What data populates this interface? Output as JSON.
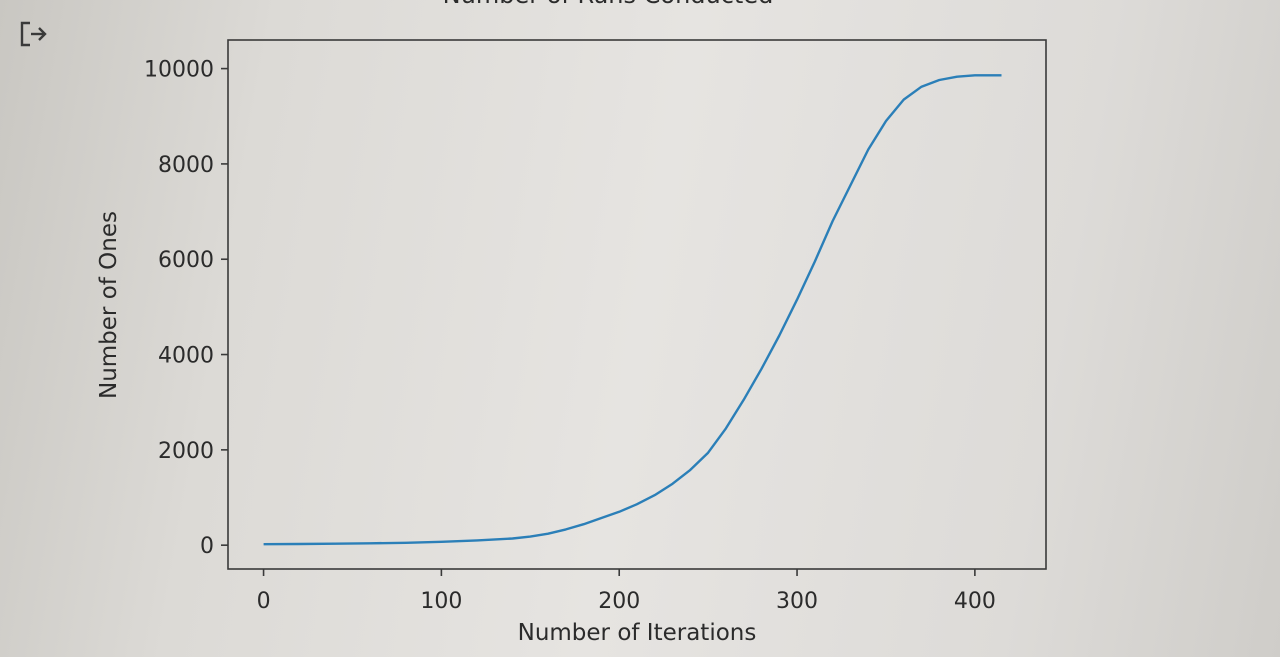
{
  "output_icon": "output-arrow-icon",
  "chart_data": {
    "type": "line",
    "title": "Number of Runs Conducted",
    "xlabel": "Number of Iterations",
    "ylabel": "Number of Ones",
    "xlim": [
      -20,
      440
    ],
    "ylim": [
      -500,
      10600
    ],
    "xticks": [
      0,
      100,
      200,
      300,
      400
    ],
    "yticks": [
      0,
      2000,
      4000,
      6000,
      8000,
      10000
    ],
    "grid": false,
    "series": [
      {
        "color": "#2b7fb8",
        "x": [
          0,
          20,
          40,
          60,
          80,
          100,
          120,
          140,
          150,
          160,
          170,
          180,
          190,
          200,
          210,
          220,
          230,
          240,
          250,
          260,
          270,
          280,
          290,
          300,
          310,
          320,
          330,
          340,
          350,
          360,
          370,
          380,
          390,
          400,
          410,
          415
        ],
        "y": [
          20,
          25,
          30,
          40,
          50,
          70,
          100,
          140,
          180,
          240,
          330,
          440,
          570,
          700,
          860,
          1050,
          1290,
          1580,
          1940,
          2450,
          3050,
          3700,
          4400,
          5150,
          5950,
          6800,
          7550,
          8300,
          8900,
          9350,
          9620,
          9760,
          9830,
          9860,
          9860,
          9860
        ]
      }
    ]
  }
}
